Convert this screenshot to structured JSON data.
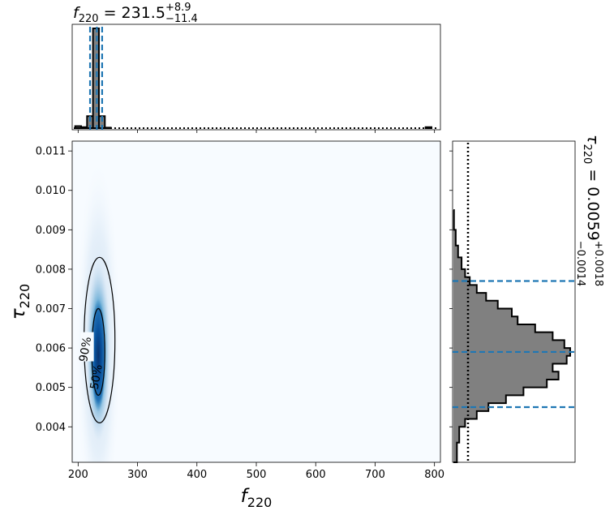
{
  "chart_data": [
    {
      "panel": "top-marginal",
      "type": "bar",
      "title": {
        "base": "f",
        "sub": "220",
        "value": " = 231.5",
        "sup": "+8.9",
        "sublow": "−11.4"
      },
      "xlim": [
        190,
        810
      ],
      "bin_width": 10,
      "bins": [
        {
          "x": 200,
          "h": 0.02
        },
        {
          "x": 210,
          "h": 0.01
        },
        {
          "x": 220,
          "h": 0.12
        },
        {
          "x": 230,
          "h": 1.0
        },
        {
          "x": 240,
          "h": 0.12
        },
        {
          "x": 250,
          "h": 0.005
        },
        {
          "x": 790,
          "h": 0.01
        }
      ],
      "quantiles": [
        220.1,
        231.5,
        240.4
      ],
      "median_x": 231.5,
      "prior_line": "dotted"
    },
    {
      "panel": "right-marginal",
      "type": "bar",
      "orientation": "horizontal",
      "title": {
        "base": "τ",
        "sub": "220",
        "value": " = 0.0059",
        "sup": "+0.0018",
        "sublow": "−0.0014"
      },
      "ylim": [
        0.0031,
        0.01125
      ],
      "bins": [
        {
          "y0": 0.0031,
          "y1": 0.0036,
          "c": 0.03
        },
        {
          "y0": 0.0036,
          "y1": 0.004,
          "c": 0.05
        },
        {
          "y0": 0.004,
          "y1": 0.0042,
          "c": 0.1
        },
        {
          "y0": 0.0042,
          "y1": 0.0044,
          "c": 0.2
        },
        {
          "y0": 0.0044,
          "y1": 0.0046,
          "c": 0.3
        },
        {
          "y0": 0.0046,
          "y1": 0.0048,
          "c": 0.45
        },
        {
          "y0": 0.0048,
          "y1": 0.005,
          "c": 0.6
        },
        {
          "y0": 0.005,
          "y1": 0.0052,
          "c": 0.8
        },
        {
          "y0": 0.0052,
          "y1": 0.0054,
          "c": 0.9
        },
        {
          "y0": 0.0054,
          "y1": 0.0056,
          "c": 0.85
        },
        {
          "y0": 0.0056,
          "y1": 0.0058,
          "c": 0.97
        },
        {
          "y0": 0.0058,
          "y1": 0.006,
          "c": 1.0
        },
        {
          "y0": 0.006,
          "y1": 0.0062,
          "c": 0.95
        },
        {
          "y0": 0.0062,
          "y1": 0.0064,
          "c": 0.85
        },
        {
          "y0": 0.0064,
          "y1": 0.0066,
          "c": 0.7
        },
        {
          "y0": 0.0066,
          "y1": 0.0068,
          "c": 0.55
        },
        {
          "y0": 0.0068,
          "y1": 0.007,
          "c": 0.5
        },
        {
          "y0": 0.007,
          "y1": 0.0072,
          "c": 0.38
        },
        {
          "y0": 0.0072,
          "y1": 0.0074,
          "c": 0.28
        },
        {
          "y0": 0.0074,
          "y1": 0.0076,
          "c": 0.2
        },
        {
          "y0": 0.0076,
          "y1": 0.0078,
          "c": 0.14
        },
        {
          "y0": 0.0078,
          "y1": 0.008,
          "c": 0.1
        },
        {
          "y0": 0.008,
          "y1": 0.0083,
          "c": 0.07
        },
        {
          "y0": 0.0083,
          "y1": 0.0086,
          "c": 0.04
        },
        {
          "y0": 0.0086,
          "y1": 0.009,
          "c": 0.02
        },
        {
          "y0": 0.009,
          "y1": 0.0095,
          "c": 0.005
        }
      ],
      "quantiles": [
        0.0045,
        0.0059,
        0.0077
      ],
      "prior_line": "dotted"
    },
    {
      "panel": "joint",
      "type": "heatmap",
      "xlabel": {
        "base": "f",
        "sub": "220"
      },
      "ylabel": {
        "base": "τ",
        "sub": "220"
      },
      "xlim": [
        190,
        810
      ],
      "ylim": [
        0.0031,
        0.01125
      ],
      "xticks": [
        200,
        300,
        400,
        500,
        600,
        700,
        800
      ],
      "yticks": [
        0.004,
        0.005,
        0.006,
        0.007,
        0.008,
        0.009,
        0.01,
        0.011
      ],
      "ytick_labels": [
        "0.004",
        "0.005",
        "0.006",
        "0.007",
        "0.008",
        "0.009",
        "0.010",
        "0.011"
      ],
      "density_center": {
        "x": 234,
        "y": 0.0059
      },
      "contours": [
        {
          "label": "90%",
          "x0": 210,
          "x1": 262,
          "y0": 0.0041,
          "y1": 0.0083
        },
        {
          "label": "50%",
          "x0": 223,
          "x1": 245,
          "y0": 0.0048,
          "y1": 0.007
        }
      ],
      "colormap": "Blues"
    }
  ]
}
